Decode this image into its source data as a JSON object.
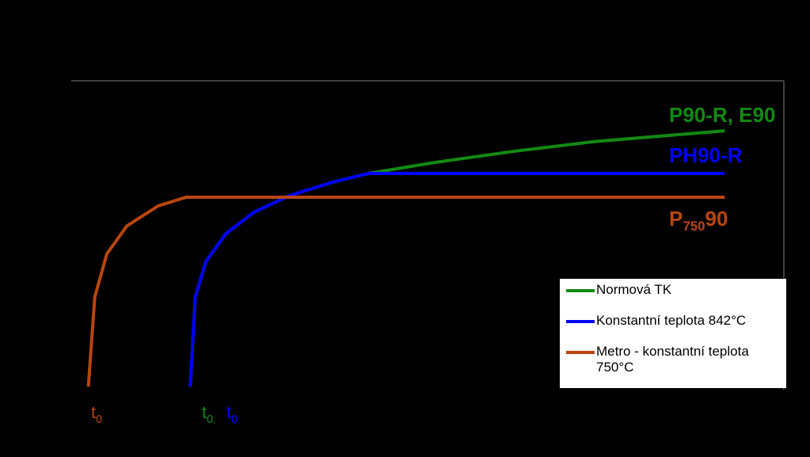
{
  "chart_data": {
    "type": "line",
    "background": "#000000",
    "xlim": [
      0,
      100
    ],
    "ylim": [
      0,
      100
    ],
    "series": [
      {
        "name": "Normová TK",
        "color": "#138a13",
        "x": [
          16.7,
          17.4,
          18.9,
          21.7,
          25.6,
          30.6,
          36.7,
          41.7,
          51.1,
          62.2,
          73.3,
          91.7
        ],
        "values": [
          1,
          30,
          41.5,
          50.5,
          57.4,
          62.8,
          67.2,
          70,
          73.6,
          77.2,
          80.3,
          83.8
        ]
      },
      {
        "name": "Konstantní teplota 842°C",
        "color": "#0000ff",
        "x": [
          16.7,
          17.4,
          18.9,
          21.7,
          25.6,
          30.6,
          36.7,
          41.7,
          91.7
        ],
        "values": [
          1,
          30,
          41.5,
          50.5,
          57.4,
          62.8,
          67.2,
          70,
          70
        ]
      },
      {
        "name": "Metro - konstantní teplota 750°C",
        "color": "#b8460f",
        "x": [
          2.4,
          3.3,
          5,
          7.8,
          12.2,
          16.1,
          91.7
        ],
        "values": [
          1,
          30,
          44,
          53,
          59.5,
          62.3,
          62.3
        ]
      }
    ],
    "annotations": [
      {
        "parts": [
          "P90-R, E90"
        ],
        "color": "#138a13"
      },
      {
        "parts": [
          "PH90-R"
        ],
        "color": "#0000ff"
      },
      {
        "parts": [
          "P",
          "750",
          "90"
        ],
        "color": "#b8460f"
      },
      {
        "parts": [
          "t",
          "0"
        ],
        "color": "#b8460f"
      },
      {
        "parts": [
          "t",
          "0",
          ","
        ],
        "color": "#138a13"
      },
      {
        "parts": [
          "t",
          "0"
        ],
        "color": "#0000ff"
      }
    ]
  }
}
